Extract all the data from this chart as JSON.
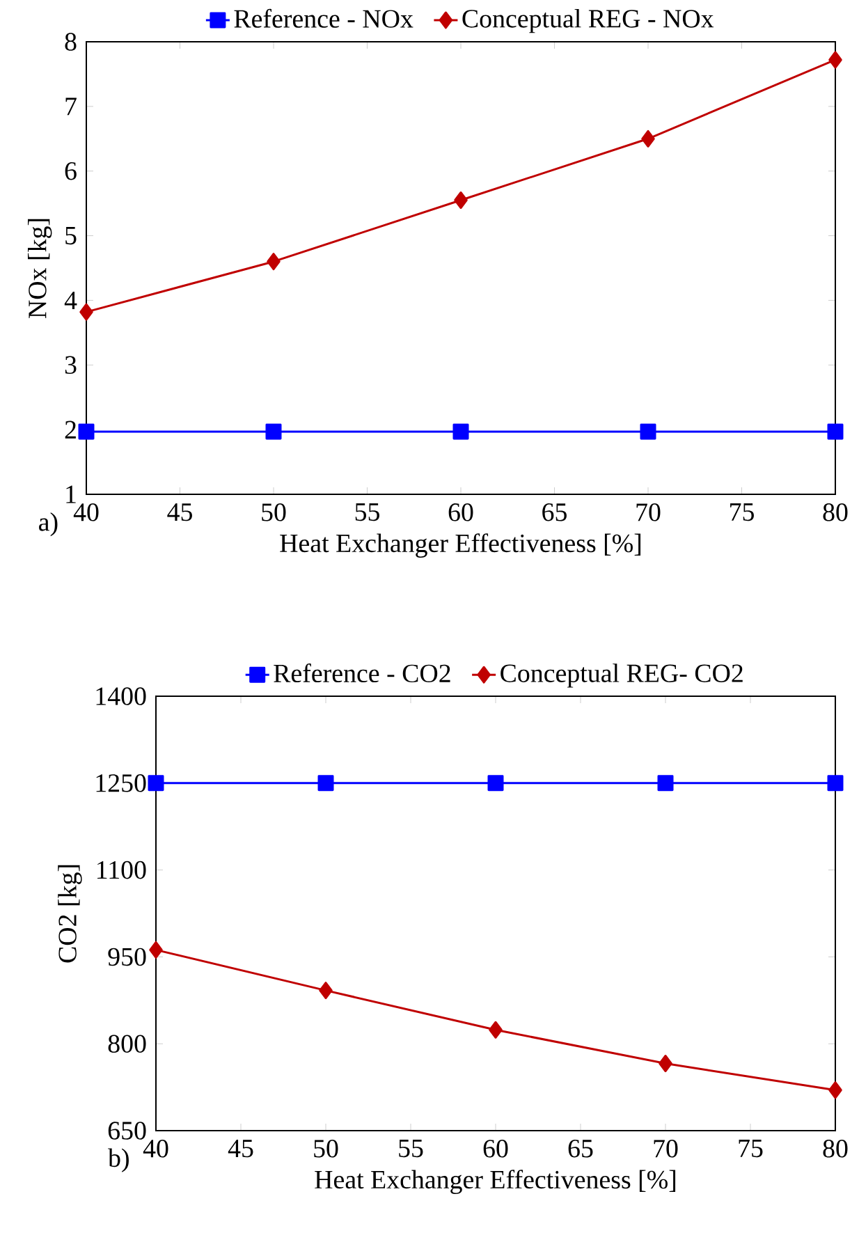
{
  "chart_data": [
    {
      "type": "line",
      "xlabel": "Heat Exchanger Effectiveness [%]",
      "ylabel": "NOx [kg]",
      "annotations": [
        "a)"
      ],
      "x": [
        40,
        50,
        60,
        70,
        80
      ],
      "xlim": [
        40,
        80
      ],
      "xticks": [
        40,
        45,
        50,
        55,
        60,
        65,
        70,
        75,
        80
      ],
      "ylim": [
        1,
        8
      ],
      "yticks": [
        1,
        2,
        3,
        4,
        5,
        6,
        7,
        8
      ],
      "legend": "top",
      "line_style": "solid",
      "series": [
        {
          "name": "Reference - NOx",
          "color": "#0000ff",
          "marker": "square",
          "values": [
            1.97,
            1.97,
            1.97,
            1.97,
            1.97
          ]
        },
        {
          "name": "Conceptual REG - NOx",
          "color": "#c00000",
          "marker": "diamond",
          "values": [
            3.82,
            4.6,
            5.55,
            6.5,
            7.72
          ]
        }
      ]
    },
    {
      "type": "line",
      "xlabel": "Heat Exchanger Effectiveness [%]",
      "ylabel": "CO2 [kg]",
      "annotations": [
        "b)"
      ],
      "x": [
        40,
        50,
        60,
        70,
        80
      ],
      "xlim": [
        40,
        80
      ],
      "xticks": [
        40,
        45,
        50,
        55,
        60,
        65,
        70,
        75,
        80
      ],
      "ylim": [
        650,
        1400
      ],
      "yticks": [
        650,
        800,
        950,
        1100,
        1250,
        1400
      ],
      "legend": "top",
      "line_style": "solid",
      "series": [
        {
          "name": "Reference - CO2",
          "color": "#0000ff",
          "marker": "square",
          "values": [
            1250,
            1250,
            1250,
            1250,
            1250
          ]
        },
        {
          "name": "Conceptual REG- CO2",
          "color": "#c00000",
          "marker": "diamond",
          "values": [
            962,
            892,
            824,
            766,
            720
          ]
        }
      ]
    }
  ]
}
